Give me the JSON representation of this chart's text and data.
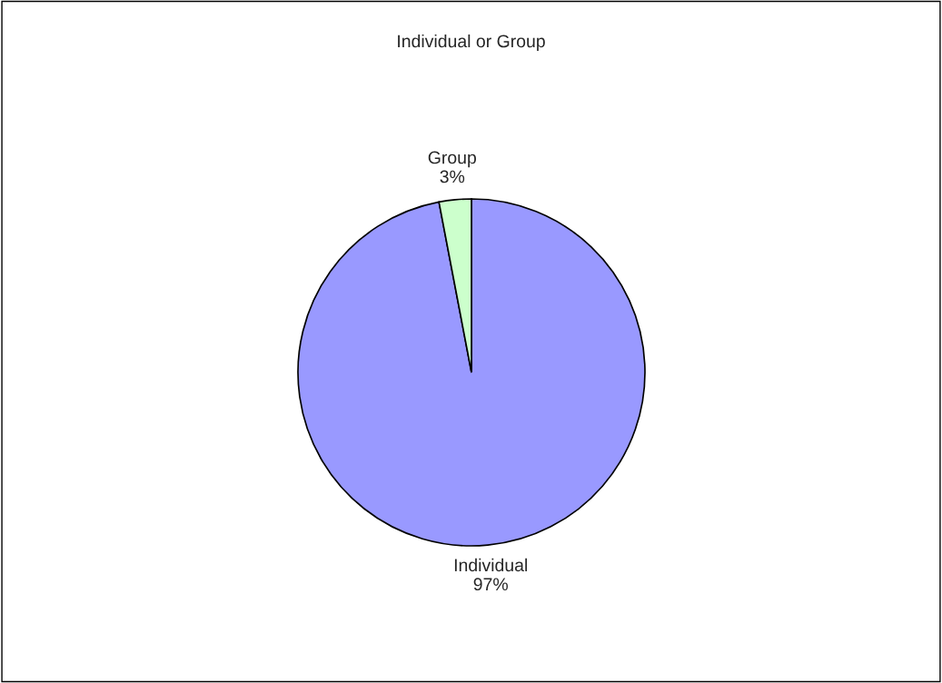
{
  "chart_data": {
    "type": "pie",
    "title": "Individual or Group",
    "categories": [
      "Individual",
      "Group"
    ],
    "values": [
      97,
      3
    ],
    "value_labels": [
      "97%",
      "3%"
    ],
    "colors": [
      "#9999ff",
      "#ccffcc"
    ]
  }
}
